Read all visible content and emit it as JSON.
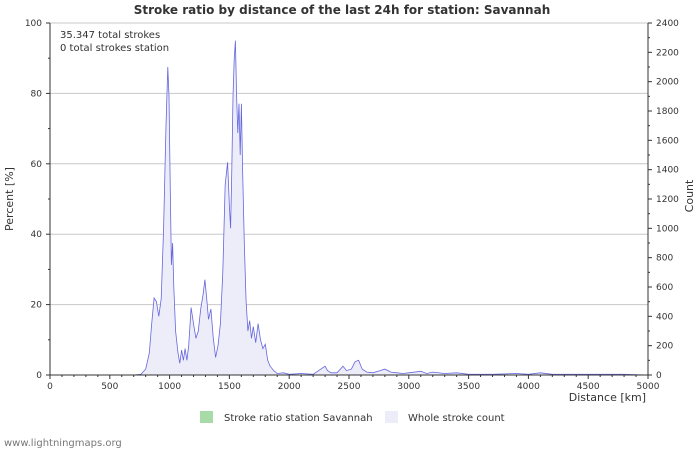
{
  "chart_data": {
    "type": "area",
    "title": "Stroke ratio by distance of the last 24h for station: Savannah",
    "xlabel": "Distance   [km]",
    "ylabel_left": "Percent   [%]",
    "ylabel_right": "Count",
    "xlim": [
      0,
      5000
    ],
    "ylim_left": [
      0,
      100
    ],
    "ylim_right": [
      0,
      2400
    ],
    "x_ticks": [
      0,
      500,
      1000,
      1500,
      2000,
      2500,
      3000,
      3500,
      4000,
      4500,
      5000
    ],
    "y_left_ticks": [
      0,
      20,
      40,
      60,
      80,
      100
    ],
    "y_right_ticks": [
      0,
      200,
      400,
      600,
      800,
      1000,
      1200,
      1400,
      1600,
      1800,
      2000,
      2200,
      2400
    ],
    "annotations": [
      "35.347 total strokes",
      "0 total strokes station"
    ],
    "legend": [
      {
        "label": "Stroke ratio station Savannah",
        "color": "#a8dba8"
      },
      {
        "label": "Whole stroke count",
        "color": "#ededfa"
      }
    ],
    "series": [
      {
        "name": "Whole stroke count",
        "color": "#6666dd",
        "fill": "#ededfa",
        "points": [
          [
            0,
            0
          ],
          [
            500,
            0
          ],
          [
            700,
            0
          ],
          [
            760,
            5
          ],
          [
            800,
            40
          ],
          [
            830,
            150
          ],
          [
            850,
            350
          ],
          [
            870,
            525
          ],
          [
            890,
            500
          ],
          [
            910,
            400
          ],
          [
            930,
            520
          ],
          [
            950,
            1000
          ],
          [
            970,
            1700
          ],
          [
            985,
            2100
          ],
          [
            995,
            1900
          ],
          [
            1005,
            1300
          ],
          [
            1015,
            750
          ],
          [
            1025,
            900
          ],
          [
            1035,
            600
          ],
          [
            1050,
            300
          ],
          [
            1070,
            150
          ],
          [
            1085,
            80
          ],
          [
            1100,
            170
          ],
          [
            1115,
            100
          ],
          [
            1130,
            180
          ],
          [
            1145,
            100
          ],
          [
            1160,
            200
          ],
          [
            1180,
            460
          ],
          [
            1200,
            350
          ],
          [
            1220,
            250
          ],
          [
            1240,
            300
          ],
          [
            1260,
            450
          ],
          [
            1280,
            550
          ],
          [
            1295,
            650
          ],
          [
            1310,
            520
          ],
          [
            1325,
            380
          ],
          [
            1345,
            450
          ],
          [
            1365,
            250
          ],
          [
            1385,
            120
          ],
          [
            1405,
            200
          ],
          [
            1425,
            350
          ],
          [
            1445,
            700
          ],
          [
            1465,
            1300
          ],
          [
            1485,
            1450
          ],
          [
            1500,
            1150
          ],
          [
            1510,
            1000
          ],
          [
            1520,
            1400
          ],
          [
            1530,
            1900
          ],
          [
            1540,
            2150
          ],
          [
            1550,
            2280
          ],
          [
            1560,
            1900
          ],
          [
            1570,
            1650
          ],
          [
            1580,
            1850
          ],
          [
            1590,
            1500
          ],
          [
            1600,
            1850
          ],
          [
            1610,
            1400
          ],
          [
            1625,
            900
          ],
          [
            1640,
            500
          ],
          [
            1655,
            300
          ],
          [
            1670,
            370
          ],
          [
            1685,
            250
          ],
          [
            1700,
            330
          ],
          [
            1720,
            220
          ],
          [
            1740,
            350
          ],
          [
            1760,
            240
          ],
          [
            1780,
            180
          ],
          [
            1800,
            210
          ],
          [
            1820,
            100
          ],
          [
            1840,
            60
          ],
          [
            1870,
            30
          ],
          [
            1900,
            10
          ],
          [
            1950,
            15
          ],
          [
            2000,
            5
          ],
          [
            2100,
            10
          ],
          [
            2200,
            5
          ],
          [
            2300,
            60
          ],
          [
            2320,
            30
          ],
          [
            2350,
            15
          ],
          [
            2400,
            15
          ],
          [
            2450,
            60
          ],
          [
            2480,
            30
          ],
          [
            2520,
            40
          ],
          [
            2550,
            90
          ],
          [
            2580,
            100
          ],
          [
            2610,
            40
          ],
          [
            2650,
            20
          ],
          [
            2700,
            15
          ],
          [
            2800,
            40
          ],
          [
            2850,
            20
          ],
          [
            2900,
            15
          ],
          [
            2950,
            10
          ],
          [
            3000,
            15
          ],
          [
            3100,
            25
          ],
          [
            3150,
            10
          ],
          [
            3200,
            20
          ],
          [
            3300,
            10
          ],
          [
            3400,
            15
          ],
          [
            3500,
            5
          ],
          [
            3700,
            5
          ],
          [
            3900,
            10
          ],
          [
            4000,
            5
          ],
          [
            4100,
            15
          ],
          [
            4200,
            5
          ],
          [
            4400,
            5
          ],
          [
            4600,
            5
          ],
          [
            4800,
            5
          ],
          [
            5000,
            0
          ]
        ]
      },
      {
        "name": "Stroke ratio station Savannah",
        "color": "#a8dba8",
        "points": []
      }
    ]
  },
  "footer": {
    "credit": "www.lightningmaps.org"
  }
}
